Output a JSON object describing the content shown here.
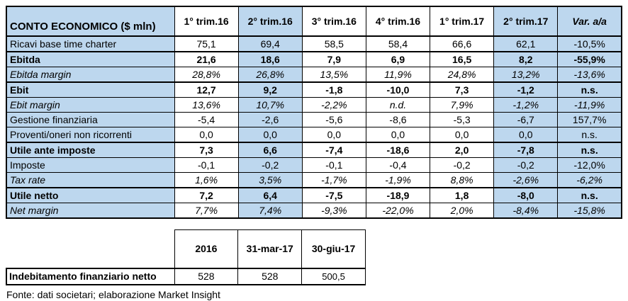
{
  "colors": {
    "highlight": "#BDD7EE",
    "border": "#000000",
    "background": "#FFFFFF"
  },
  "main_table": {
    "title": "CONTO ECONOMICO ($ mln)",
    "columns": [
      "1° trim.16",
      "2° trim.16",
      "3° trim.16",
      "4° trim.16",
      "1° trim.17",
      "2° trim.17",
      "Var. a/a"
    ],
    "highlight_columns": [
      1,
      5,
      6
    ],
    "rows": [
      {
        "label": "Ricavi base time charter",
        "style": "regular",
        "thick_top": false,
        "values": [
          "75,1",
          "69,4",
          "58,5",
          "58,4",
          "66,6",
          "62,1",
          "-10,5%"
        ]
      },
      {
        "label": "Ebitda",
        "style": "bold",
        "thick_top": true,
        "values": [
          "21,6",
          "18,6",
          "7,9",
          "6,9",
          "16,5",
          "8,2",
          "-55,9%"
        ]
      },
      {
        "label": "Ebitda margin",
        "style": "italic",
        "thick_top": false,
        "values": [
          "28,8%",
          "26,8%",
          "13,5%",
          "11,9%",
          "24,8%",
          "13,2%",
          "-13,6%"
        ]
      },
      {
        "label": "Ebit",
        "style": "bold",
        "thick_top": true,
        "values": [
          "12,7",
          "9,2",
          "-1,8",
          "-10,0",
          "7,3",
          "-1,2",
          "n.s."
        ]
      },
      {
        "label": "Ebit margin",
        "style": "italic",
        "thick_top": false,
        "values": [
          "13,6%",
          "10,7%",
          "-2,2%",
          "n.d.",
          "7,9%",
          "-1,2%",
          "-11,9%"
        ]
      },
      {
        "label": "Gestione finanziaria",
        "style": "regular",
        "thick_top": false,
        "values": [
          "-5,4",
          "-2,6",
          "-5,6",
          "-8,6",
          "-5,3",
          "-6,7",
          "157,7%"
        ]
      },
      {
        "label": "Proventi/oneri non ricorrenti",
        "style": "regular",
        "thick_top": false,
        "values": [
          "0,0",
          "0,0",
          "0,0",
          "0,0",
          "0,0",
          "0,0",
          "n.s."
        ]
      },
      {
        "label": "Utile ante imposte",
        "style": "bold",
        "thick_top": true,
        "values": [
          "7,3",
          "6,6",
          "-7,4",
          "-18,6",
          "2,0",
          "-7,8",
          "n.s."
        ]
      },
      {
        "label": "Imposte",
        "style": "regular",
        "thick_top": false,
        "values": [
          "-0,1",
          "-0,2",
          "-0,1",
          "-0,4",
          "-0,2",
          "-0,2",
          "-12,0%"
        ]
      },
      {
        "label": "Tax rate",
        "style": "italic",
        "thick_top": false,
        "values": [
          "1,6%",
          "3,5%",
          "-1,7%",
          "-1,9%",
          "8,8%",
          "-2,6%",
          "-6,2%"
        ]
      },
      {
        "label": "Utile netto",
        "style": "bold",
        "thick_top": true,
        "values": [
          "7,2",
          "6,4",
          "-7,5",
          "-18,9",
          "1,8",
          "-8,0",
          "n.s."
        ]
      },
      {
        "label": "Net margin",
        "style": "italic",
        "thick_top": false,
        "values": [
          "7,7%",
          "7,4%",
          "-9,3%",
          "-22,0%",
          "2,0%",
          "-8,4%",
          "-15,8%"
        ]
      }
    ]
  },
  "debt_table": {
    "columns": [
      "2016",
      "31-mar-17",
      "30-giu-17"
    ],
    "row_label": "Indebitamento finanziario netto",
    "values": [
      "528",
      "528",
      "500,5"
    ]
  },
  "footer": "Fonte: dati societari; elaborazione Market Insight"
}
